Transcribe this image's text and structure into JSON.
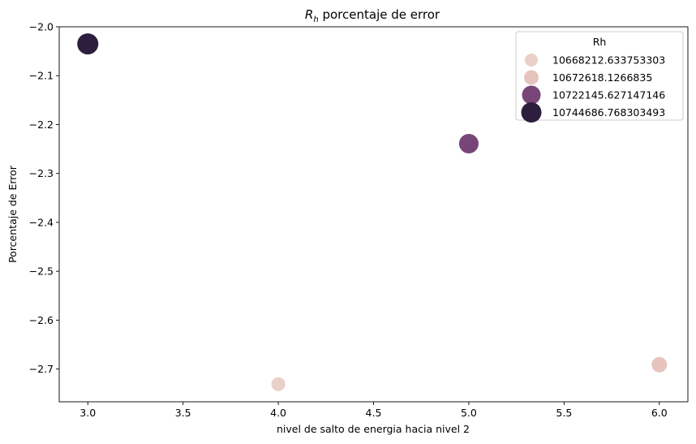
{
  "chart_data": {
    "type": "scatter",
    "title_main": "R",
    "title_sub": "h",
    "title_rest": " porcentaje de error",
    "xlabel": "nivel de salto de energia hacia nivel 2",
    "ylabel": "Porcentaje de Error",
    "xlim": [
      2.85,
      6.15
    ],
    "ylim": [
      -2.767,
      -2.0
    ],
    "xticks": [
      "3.0",
      "3.5",
      "4.0",
      "4.5",
      "5.0",
      "5.5",
      "6.0"
    ],
    "yticks": [
      "-2.0",
      "-2.1",
      "-2.2",
      "-2.3",
      "-2.4",
      "-2.5",
      "-2.6",
      "-2.7"
    ],
    "grid": false,
    "legend": {
      "title": "Rh",
      "placement": "top-right",
      "entries": [
        {
          "label": "10668212.633753303",
          "color": "#ebcfc9",
          "size": 1
        },
        {
          "label": "10672618.1266835",
          "color": "#e6c4bd",
          "size": 2
        },
        {
          "label": "10722145.627147146",
          "color": "#774578",
          "size": 3
        },
        {
          "label": "10744686.768303493",
          "color": "#2d1e3e",
          "size": 4
        }
      ]
    },
    "points": [
      {
        "x": 3,
        "y": -2.035,
        "rh": "10744686.768303493",
        "color": "#2d1e3e",
        "size": 4
      },
      {
        "x": 4,
        "y": -2.731,
        "rh": "10668212.633753303",
        "color": "#ebcfc9",
        "size": 1
      },
      {
        "x": 5,
        "y": -2.239,
        "rh": "10722145.627147146",
        "color": "#774578",
        "size": 3
      },
      {
        "x": 6,
        "y": -2.691,
        "rh": "10672618.1266835",
        "color": "#e6c4bd",
        "size": 2
      }
    ]
  }
}
